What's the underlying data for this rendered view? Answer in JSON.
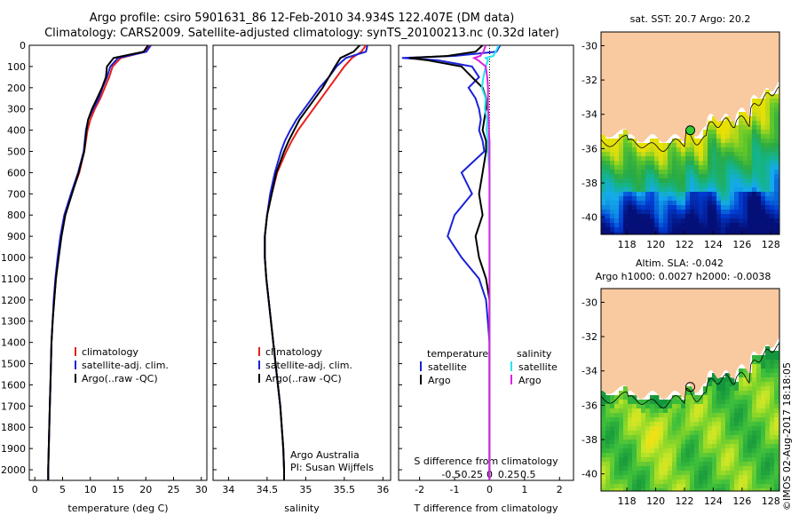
{
  "header": {
    "line1": "Argo profile: csiro 5901631_86 12-Feb-2010 34.934S 122.407E (DM data)",
    "line2": "Climatology: CARS2009. Satellite-adjusted climatology: synTS_20100213.nc (0.32d later)"
  },
  "stamp": "©IMOS 02-Aug-2017 18:18:05",
  "colors": {
    "climatology": "#e8201a",
    "satellite": "#1a22d8",
    "argo": "#000000",
    "s_satellite": "#22e6f0",
    "s_argo": "#e020e0",
    "land": "#f9c9a0"
  },
  "chart_data": [
    {
      "type": "line",
      "name": "temperature-profile",
      "xlabel": "temperature (deg C)",
      "ylabel": "",
      "xlim": [
        -1,
        31
      ],
      "ylim": [
        2050,
        0
      ],
      "xticks": [
        "0",
        "5",
        "10",
        "15",
        "20",
        "25",
        "30"
      ],
      "yticks": [
        "0",
        "100",
        "200",
        "300",
        "400",
        "500",
        "600",
        "700",
        "800",
        "900",
        "1000",
        "1100",
        "1200",
        "1300",
        "1400",
        "1500",
        "1600",
        "1700",
        "1800",
        "1900",
        "2000"
      ],
      "y": [
        0,
        30,
        60,
        100,
        150,
        200,
        250,
        300,
        350,
        400,
        450,
        500,
        600,
        700,
        800,
        900,
        1000,
        1100,
        1200,
        1300,
        1400,
        1500,
        1600,
        1700,
        1800,
        1900,
        2000,
        2050
      ],
      "series": [
        {
          "name": "climatology",
          "color": "climatology",
          "values": [
            20.6,
            20.0,
            15.5,
            14.0,
            13.4,
            12.6,
            11.8,
            10.8,
            10.0,
            9.5,
            9.2,
            8.9,
            8.0,
            6.6,
            5.4,
            4.7,
            4.2,
            3.8,
            3.5,
            3.2,
            3.0,
            2.9,
            2.8,
            2.7,
            2.6,
            2.5,
            2.4,
            2.4
          ]
        },
        {
          "name": "satellite-adj. clim.",
          "color": "satellite",
          "values": [
            20.9,
            20.1,
            15.0,
            13.6,
            13.0,
            12.2,
            11.5,
            10.5,
            9.6,
            9.2,
            9.0,
            8.8,
            7.8,
            6.5,
            5.3,
            4.6,
            4.1,
            3.7,
            3.4,
            3.2,
            3.0,
            2.9,
            2.8,
            2.7,
            2.6,
            2.5,
            2.4,
            2.4
          ]
        },
        {
          "name": "Argo(..raw -QC)",
          "color": "argo",
          "values": [
            20.4,
            19.6,
            14.2,
            13.0,
            12.8,
            12.1,
            11.2,
            10.3,
            9.6,
            9.3,
            9.1,
            8.9,
            7.9,
            6.7,
            5.5,
            4.8,
            4.3,
            3.8,
            3.5,
            3.2,
            3.0,
            2.9,
            2.8,
            2.7,
            2.6,
            2.5,
            2.4,
            2.4
          ]
        }
      ],
      "legend": [
        "climatology",
        "satellite-adj. clim.",
        "Argo(..raw -QC)"
      ],
      "legend_position": "lower-right"
    },
    {
      "type": "line",
      "name": "salinity-profile",
      "xlabel": "salinity",
      "xlim": [
        33.8,
        36.1
      ],
      "ylim": [
        2050,
        0
      ],
      "xticks": [
        "34",
        "34.5",
        "35",
        "35.5",
        "36"
      ],
      "y": [
        0,
        30,
        60,
        100,
        150,
        200,
        250,
        300,
        350,
        400,
        450,
        500,
        600,
        700,
        800,
        900,
        1000,
        1100,
        1200,
        1300,
        1400,
        1500,
        1600,
        1700,
        1800,
        1900,
        2000,
        2050
      ],
      "series": [
        {
          "name": "climatology",
          "color": "climatology",
          "values": [
            35.78,
            35.72,
            35.6,
            35.5,
            35.4,
            35.3,
            35.2,
            35.1,
            35.0,
            34.9,
            34.82,
            34.75,
            34.63,
            34.56,
            34.5,
            34.47,
            34.47,
            34.49,
            34.52,
            34.55,
            34.58,
            34.61,
            34.64,
            34.67,
            34.69,
            34.71,
            34.72,
            34.72
          ]
        },
        {
          "name": "satellite-adj. clim.",
          "color": "satellite",
          "values": [
            35.8,
            35.78,
            35.52,
            35.4,
            35.3,
            35.18,
            35.08,
            34.98,
            34.88,
            34.8,
            34.73,
            34.68,
            34.6,
            34.54,
            34.5,
            34.47,
            34.47,
            34.49,
            34.52,
            34.55,
            34.58,
            34.61,
            34.64,
            34.67,
            34.69,
            34.71,
            34.72,
            34.72
          ]
        },
        {
          "name": "Argo(..raw -QC)",
          "color": "argo",
          "values": [
            35.7,
            35.62,
            35.45,
            35.38,
            35.3,
            35.22,
            35.12,
            35.02,
            34.92,
            34.85,
            34.78,
            34.72,
            34.62,
            34.56,
            34.5,
            34.47,
            34.47,
            34.49,
            34.52,
            34.55,
            34.58,
            34.61,
            34.64,
            34.67,
            34.69,
            34.71,
            34.72,
            34.72
          ]
        }
      ],
      "legend": [
        "climatology",
        "satellite-adj. clim.",
        "Argo(..raw -QC)"
      ],
      "legend_position": "lower-right",
      "annotation": [
        "Argo Australia",
        "PI: Susan Wijffels"
      ]
    },
    {
      "type": "line",
      "name": "difference-profile",
      "xlabel": "T difference from climatology",
      "top_axis_label": "S difference from climatology",
      "xlim": [
        -2.6,
        2.4
      ],
      "ylim": [
        2050,
        0
      ],
      "xticks": [
        "-2",
        "-1",
        "0",
        "1",
        "2"
      ],
      "s_xticks": [
        "-0.5",
        "-0.25",
        "0",
        "0.25",
        "0.5"
      ],
      "y": [
        0,
        30,
        50,
        60,
        70,
        100,
        150,
        200,
        250,
        300,
        350,
        400,
        450,
        500,
        600,
        700,
        800,
        900,
        1000,
        1100,
        1200,
        1300,
        1400,
        1500,
        1600,
        1700,
        1800,
        1900,
        2000,
        2050
      ],
      "series": [
        {
          "name": "temperature satellite",
          "color": "satellite",
          "values": [
            0.3,
            0.2,
            -1.0,
            -2.5,
            -1.5,
            -0.5,
            -0.3,
            -0.6,
            -0.4,
            -0.3,
            -0.25,
            -0.3,
            -0.2,
            -0.15,
            -0.8,
            -0.5,
            -1.0,
            -1.2,
            -0.8,
            -0.3,
            -0.1,
            -0.05,
            0.0,
            0.0,
            0.0,
            0.0,
            0.0,
            0.0,
            0.0,
            0.0
          ]
        },
        {
          "name": "temperature Argo",
          "color": "argo",
          "values": [
            -0.2,
            -0.4,
            -1.2,
            -2.3,
            -1.8,
            -0.8,
            -0.5,
            -0.2,
            -0.1,
            -0.1,
            -0.15,
            -0.2,
            -0.1,
            -0.1,
            -0.2,
            -0.3,
            -0.2,
            -0.4,
            -0.3,
            -0.1,
            0.0,
            0.0,
            0.0,
            0.0,
            0.0,
            0.0,
            0.0,
            0.0,
            0.0,
            0.0
          ]
        },
        {
          "name": "salinity satellite",
          "color": "s_satellite",
          "values": [
            0.12,
            0.08,
            0.05,
            -0.05,
            -0.02,
            -0.05,
            -0.08,
            -0.1,
            -0.05,
            -0.06,
            -0.03,
            -0.04,
            -0.02,
            -0.02,
            0.0,
            0.0,
            0.0,
            0.0,
            0.0,
            0.0,
            0.0,
            0.0,
            0.0,
            0.0,
            0.0,
            0.0,
            0.0,
            0.0,
            0.0,
            0.0
          ]
        },
        {
          "name": "salinity Argo",
          "color": "s_argo",
          "values": [
            -0.05,
            -0.08,
            -0.12,
            -0.2,
            -0.15,
            -0.05,
            -0.03,
            -0.02,
            -0.02,
            -0.02,
            -0.01,
            -0.01,
            0.0,
            0.0,
            0.0,
            0.0,
            0.0,
            0.0,
            0.0,
            0.0,
            0.0,
            0.0,
            0.0,
            0.0,
            0.0,
            0.0,
            0.0,
            0.0,
            0.0,
            0.0
          ]
        }
      ],
      "legend_headers": [
        "temperature",
        "salinity"
      ],
      "legend_items": [
        "satellite",
        "Argo",
        "satellite",
        "Argo"
      ],
      "legend_position": "lower-center"
    },
    {
      "type": "heatmap",
      "name": "sst-map",
      "title": "sat. SST: 20.7 Argo: 20.2",
      "xticks": [
        "118",
        "120",
        "122",
        "124",
        "126",
        "128"
      ],
      "yticks": [
        "-30",
        "-32",
        "-34",
        "-36",
        "-38",
        "-40"
      ],
      "xlim": [
        116.2,
        128.6
      ],
      "ylim": [
        -41,
        -29.2
      ],
      "marker": {
        "lon": 122.4,
        "lat": -34.93,
        "fill": "#33cc33"
      }
    },
    {
      "type": "heatmap",
      "name": "sla-map",
      "title": "Altim. SLA: -0.042",
      "subtitle": "Argo h1000: 0.0027 h2000: -0.0038",
      "xticks": [
        "118",
        "120",
        "122",
        "124",
        "126",
        "128"
      ],
      "yticks": [
        "-30",
        "-32",
        "-34",
        "-36",
        "-38",
        "-40"
      ],
      "xlim": [
        116.2,
        128.6
      ],
      "ylim": [
        -41,
        -29.2
      ],
      "marker": {
        "lon": 122.4,
        "lat": -34.93,
        "fill": "none"
      }
    }
  ]
}
